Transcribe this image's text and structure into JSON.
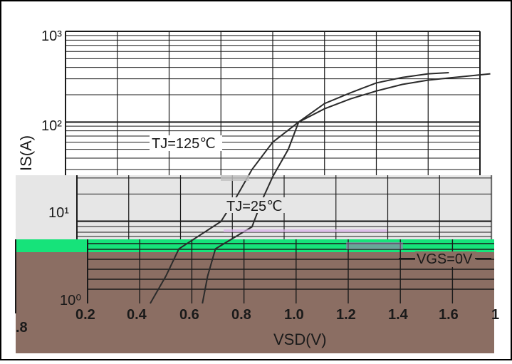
{
  "chart_data": {
    "type": "line",
    "y_scale": "log",
    "ylim": [
      1,
      1000
    ],
    "xlim_top": [
      0,
      1.6
    ],
    "xlim_bottom": [
      0.2,
      1.8
    ],
    "grid": true,
    "ylabel": "IS(A)",
    "xlabel": "VSD(V)",
    "y_ticks": [
      "10⁰",
      "10¹",
      "10²",
      "10³"
    ],
    "x_ticks": [
      ".8",
      "0.2",
      "0.4",
      "0.6",
      "0.8",
      "1.0",
      "1.2",
      "1.4",
      "1.6",
      "1"
    ],
    "colors": {
      "curve": "#2b2b2b",
      "band_light": "#e6e6e6",
      "band_green": "#16e37a",
      "band_brown": "#8b6e63"
    },
    "series": [
      {
        "name": "TJ=125℃",
        "points": [
          [
            0.44,
            1.0
          ],
          [
            0.5,
            2.0
          ],
          [
            0.55,
            4.0
          ],
          [
            0.6,
            8.0
          ],
          [
            0.66,
            15.0
          ],
          [
            0.72,
            30.0
          ],
          [
            0.8,
            60.0
          ],
          [
            0.9,
            100.0
          ],
          [
            1.0,
            160.0
          ],
          [
            1.1,
            210.0
          ],
          [
            1.2,
            270.0
          ],
          [
            1.3,
            310.0
          ],
          [
            1.4,
            340.0
          ],
          [
            1.48,
            350.0
          ]
        ]
      },
      {
        "name": "TJ=25℃",
        "points": [
          [
            0.64,
            1.0
          ],
          [
            0.66,
            2.0
          ],
          [
            0.69,
            4.0
          ],
          [
            0.72,
            7.0
          ],
          [
            0.76,
            14.0
          ],
          [
            0.8,
            25.0
          ],
          [
            0.86,
            50.0
          ],
          [
            0.9,
            100.0
          ],
          [
            1.0,
            140.0
          ],
          [
            1.1,
            180.0
          ],
          [
            1.2,
            220.0
          ],
          [
            1.3,
            260.0
          ],
          [
            1.4,
            290.0
          ],
          [
            1.5,
            310.0
          ],
          [
            1.64,
            340.0
          ]
        ]
      }
    ],
    "annotations": [
      "TJ=125℃",
      "TJ=25℃",
      "VGS=0V"
    ]
  }
}
